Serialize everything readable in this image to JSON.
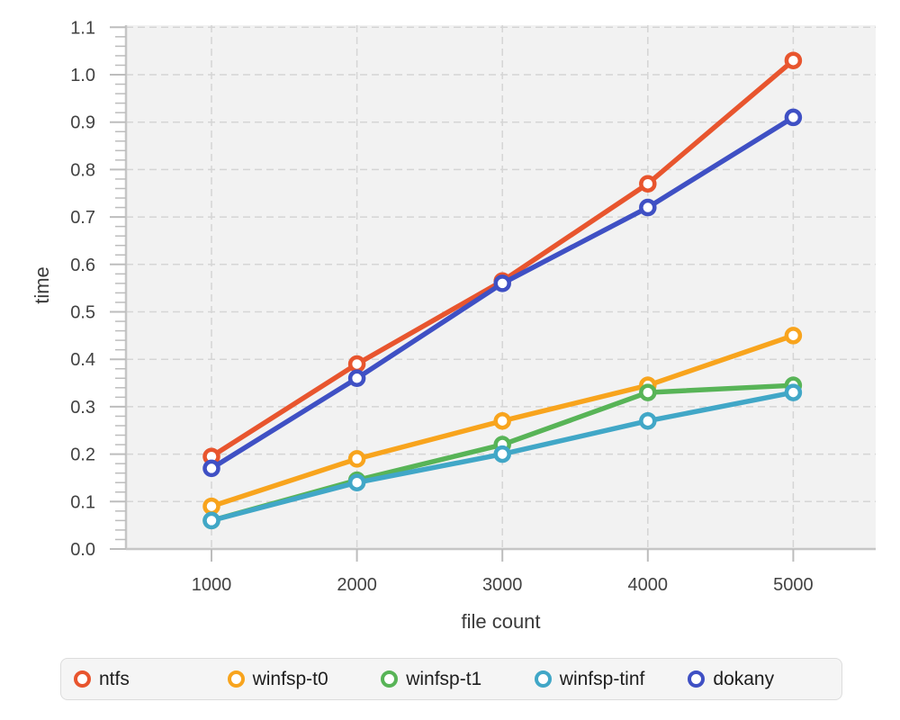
{
  "colors": {
    "page_bg": "#ffffff",
    "plot_bg": "#f2f2f2",
    "grid": "#d5d5d5",
    "axis_line": "#c6c6c6",
    "tick_mark": "#bdbdbd",
    "tick_text": "#424242",
    "axis_title_text": "#3a3a3a",
    "legend_bg": "#f5f5f5",
    "legend_border": "#dcdcdc",
    "legend_text": "#1e1e1e"
  },
  "chart_data": {
    "type": "line",
    "title": "",
    "xlabel": "file count",
    "ylabel": "time",
    "categories": [
      1000,
      2000,
      3000,
      4000,
      5000
    ],
    "x_tick_labels": [
      "1000",
      "2000",
      "3000",
      "4000",
      "5000"
    ],
    "y_tick_labels": [
      "0.0",
      "0.1",
      "0.2",
      "0.3",
      "0.4",
      "0.5",
      "0.6",
      "0.7",
      "0.8",
      "0.9",
      "1.0",
      "1.1"
    ],
    "ylim": [
      0,
      1.1
    ],
    "grid": "dashed",
    "marker": "open-circle",
    "legend_position": "bottom",
    "series": [
      {
        "name": "ntfs",
        "color": "#E8552E",
        "values": [
          0.195,
          0.39,
          0.565,
          0.77,
          1.03
        ]
      },
      {
        "name": "winfsp-t0",
        "color": "#F8A41D",
        "values": [
          0.09,
          0.19,
          0.27,
          0.345,
          0.45
        ]
      },
      {
        "name": "winfsp-t1",
        "color": "#58B457",
        "values": [
          0.06,
          0.145,
          0.22,
          0.33,
          0.345
        ]
      },
      {
        "name": "winfsp-tinf",
        "color": "#41A7C7",
        "values": [
          0.06,
          0.14,
          0.2,
          0.27,
          0.33
        ]
      },
      {
        "name": "dokany",
        "color": "#3F50C4",
        "values": [
          0.17,
          0.36,
          0.56,
          0.72,
          0.91
        ]
      }
    ]
  }
}
